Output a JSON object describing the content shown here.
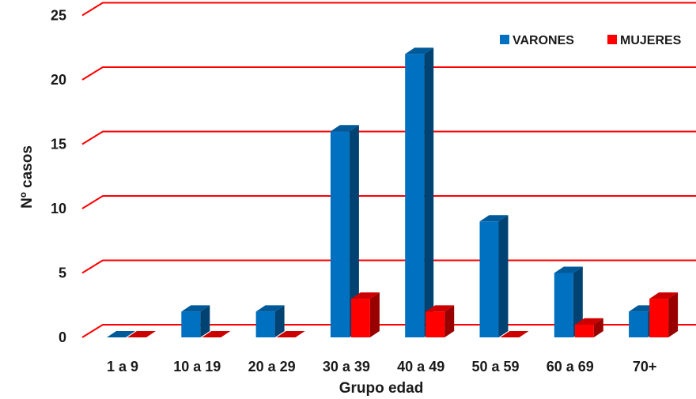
{
  "chart_data": {
    "type": "bar",
    "title": "",
    "xlabel": "Grupo edad",
    "ylabel": "Nº casos",
    "ylim": [
      0,
      25
    ],
    "yticks": [
      "0",
      "5",
      "10",
      "15",
      "20",
      "25"
    ],
    "grid": true,
    "legend_position": "top-right",
    "categories": [
      "1 a 9",
      "10 a 19",
      "20 a 29",
      "30 a 39",
      "40 a 49",
      "50 a 59",
      "60 a 69",
      "70+"
    ],
    "series": [
      {
        "name": "VARONES",
        "color": "#0070c0",
        "values": [
          0,
          2,
          2,
          16,
          22,
          9,
          5,
          2
        ]
      },
      {
        "name": "MUJERES",
        "color": "#ff0000",
        "values": [
          0,
          0,
          0,
          3,
          2,
          0,
          1,
          3
        ]
      }
    ],
    "gridline_color": "#ff0000",
    "style": "3d-column"
  }
}
